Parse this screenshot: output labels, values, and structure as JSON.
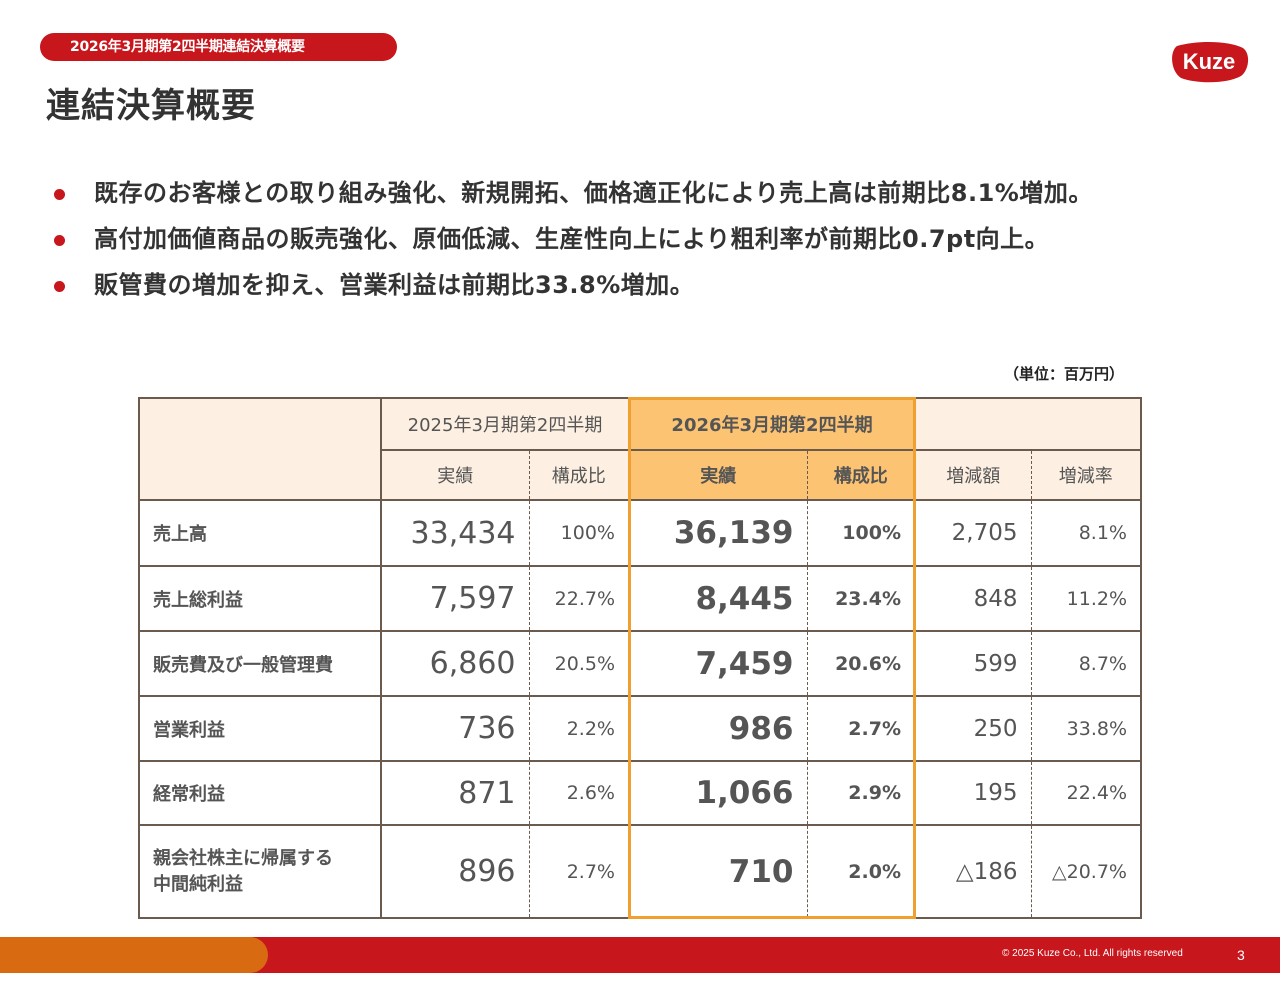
{
  "header": {
    "tag": "2026年3月期第2四半期連結決算概要",
    "title": "連結決算概要",
    "logo_text": "Kuze"
  },
  "bullets": [
    "既存のお客様との取り組み強化、新規開拓、価格適正化により売上高は前期比8.1%増加。",
    "高付加価値商品の販売強化、原価低減、生産性向上により粗利率が前期比0.7pt向上。",
    "販管費の増加を抑え、営業利益は前期比33.8%増加。"
  ],
  "unit": "（単位：百万円）",
  "table": {
    "period_prev": "2025年3月期第2四半期",
    "period_curr": "2026年3月期第2四半期",
    "col_actual": "実績",
    "col_ratio": "構成比",
    "col_diff": "増減額",
    "col_rate": "増減率",
    "rows": [
      {
        "label": "売上高",
        "prev": "33,434",
        "prev_ratio": "100%",
        "curr": "36,139",
        "curr_ratio": "100%",
        "diff": "2,705",
        "rate": "8.1%"
      },
      {
        "label": "売上総利益",
        "prev": "7,597",
        "prev_ratio": "22.7%",
        "curr": "8,445",
        "curr_ratio": "23.4%",
        "diff": "848",
        "rate": "11.2%"
      },
      {
        "label": "販売費及び一般管理費",
        "prev": "6,860",
        "prev_ratio": "20.5%",
        "curr": "7,459",
        "curr_ratio": "20.6%",
        "diff": "599",
        "rate": "8.7%"
      },
      {
        "label": "営業利益",
        "prev": "736",
        "prev_ratio": "2.2%",
        "curr": "986",
        "curr_ratio": "2.7%",
        "diff": "250",
        "rate": "33.8%"
      },
      {
        "label": "経常利益",
        "prev": "871",
        "prev_ratio": "2.6%",
        "curr": "1,066",
        "curr_ratio": "2.9%",
        "diff": "195",
        "rate": "22.4%"
      },
      {
        "label": "親会社株主に帰属する中間純利益",
        "label_line1": "親会社株主に帰属する",
        "label_line2": "中間純利益",
        "prev": "896",
        "prev_ratio": "2.7%",
        "curr": "710",
        "curr_ratio": "2.0%",
        "diff": "△186",
        "rate": "△20.7%"
      }
    ]
  },
  "footer": {
    "copyright": "© 2025 Kuze Co., Ltd. All rights reserved",
    "page": "3"
  },
  "colors": {
    "brand_red": "#c8161d",
    "accent_orange": "#d86a12",
    "highlight_border": "#f0a030",
    "highlight_fill": "#fcc373",
    "header_fill": "#fdf0e2"
  }
}
